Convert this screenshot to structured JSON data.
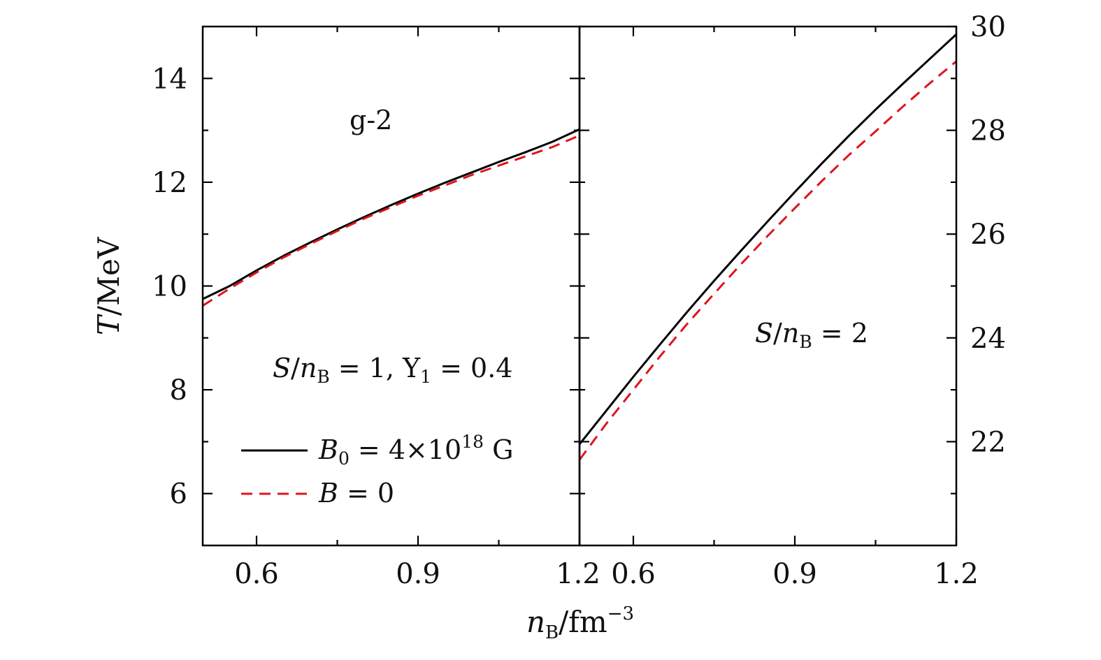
{
  "chart_data": [
    {
      "type": "line",
      "panel": "left",
      "annotation_top": "g-2",
      "annotation_params": "S/nB = 1, Y1 = 0.4",
      "ylabel": "T/MeV",
      "xlim": [
        0.5,
        1.2
      ],
      "ylim": [
        5,
        15
      ],
      "x_ticks": [
        0.6,
        0.9,
        1.2
      ],
      "x_tick_labels": [
        "0.6",
        "0.9",
        "1.2"
      ],
      "y_ticks": [
        6,
        8,
        10,
        12,
        14
      ],
      "y_tick_labels": [
        "6",
        "8",
        "10",
        "12",
        "14"
      ],
      "legend_placement": "bottom-left",
      "series": [
        {
          "name": "B0 = 4×10^18 G",
          "color": "#000000",
          "style": "solid",
          "x": [
            0.5,
            0.55,
            0.6,
            0.65,
            0.7,
            0.75,
            0.8,
            0.85,
            0.9,
            0.95,
            1.0,
            1.05,
            1.1,
            1.15,
            1.2
          ],
          "y": [
            9.75,
            10.0,
            10.3,
            10.58,
            10.84,
            11.09,
            11.33,
            11.56,
            11.78,
            11.99,
            12.19,
            12.39,
            12.58,
            12.78,
            13.02
          ]
        },
        {
          "name": "B = 0",
          "color": "#e0141e",
          "style": "dashed",
          "x": [
            0.5,
            0.55,
            0.6,
            0.65,
            0.7,
            0.75,
            0.8,
            0.85,
            0.9,
            0.95,
            1.0,
            1.05,
            1.1,
            1.15,
            1.2
          ],
          "y": [
            9.62,
            9.95,
            10.26,
            10.55,
            10.81,
            11.06,
            11.3,
            11.52,
            11.74,
            11.94,
            12.14,
            12.32,
            12.5,
            12.68,
            12.9
          ]
        }
      ]
    },
    {
      "type": "line",
      "panel": "right",
      "annotation_params": "S/nB = 2",
      "xlim": [
        0.5,
        1.2
      ],
      "ylim": [
        20,
        30
      ],
      "x_ticks": [
        0.6,
        0.9,
        1.2
      ],
      "x_tick_labels": [
        "0.6",
        "0.9",
        "1.2"
      ],
      "y_ticks": [
        22,
        24,
        26,
        28,
        30
      ],
      "y_tick_labels": [
        "22",
        "24",
        "26",
        "28",
        "30"
      ],
      "series": [
        {
          "name": "B0 = 4×10^18 G",
          "color": "#000000",
          "style": "solid",
          "x": [
            0.5,
            0.55,
            0.6,
            0.65,
            0.7,
            0.75,
            0.8,
            0.85,
            0.9,
            0.95,
            1.0,
            1.05,
            1.1,
            1.15,
            1.2
          ],
          "y": [
            21.95,
            22.6,
            23.25,
            23.88,
            24.5,
            25.1,
            25.68,
            26.25,
            26.81,
            27.36,
            27.89,
            28.4,
            28.89,
            29.37,
            29.85
          ]
        },
        {
          "name": "B = 0",
          "color": "#e0141e",
          "style": "dashed",
          "x": [
            0.5,
            0.55,
            0.6,
            0.65,
            0.7,
            0.75,
            0.8,
            0.85,
            0.9,
            0.95,
            1.0,
            1.05,
            1.1,
            1.15,
            1.2
          ],
          "y": [
            21.65,
            22.35,
            23.0,
            23.65,
            24.27,
            24.85,
            25.42,
            25.97,
            26.5,
            27.02,
            27.52,
            27.98,
            28.45,
            28.9,
            29.33
          ]
        }
      ]
    }
  ],
  "xlabel": "nB/fm⁻³",
  "legend": [
    {
      "label": "B0 = 4×10^18 G",
      "color": "#000000",
      "style": "solid"
    },
    {
      "label": "B = 0",
      "color": "#e0141e",
      "style": "dashed"
    }
  ]
}
